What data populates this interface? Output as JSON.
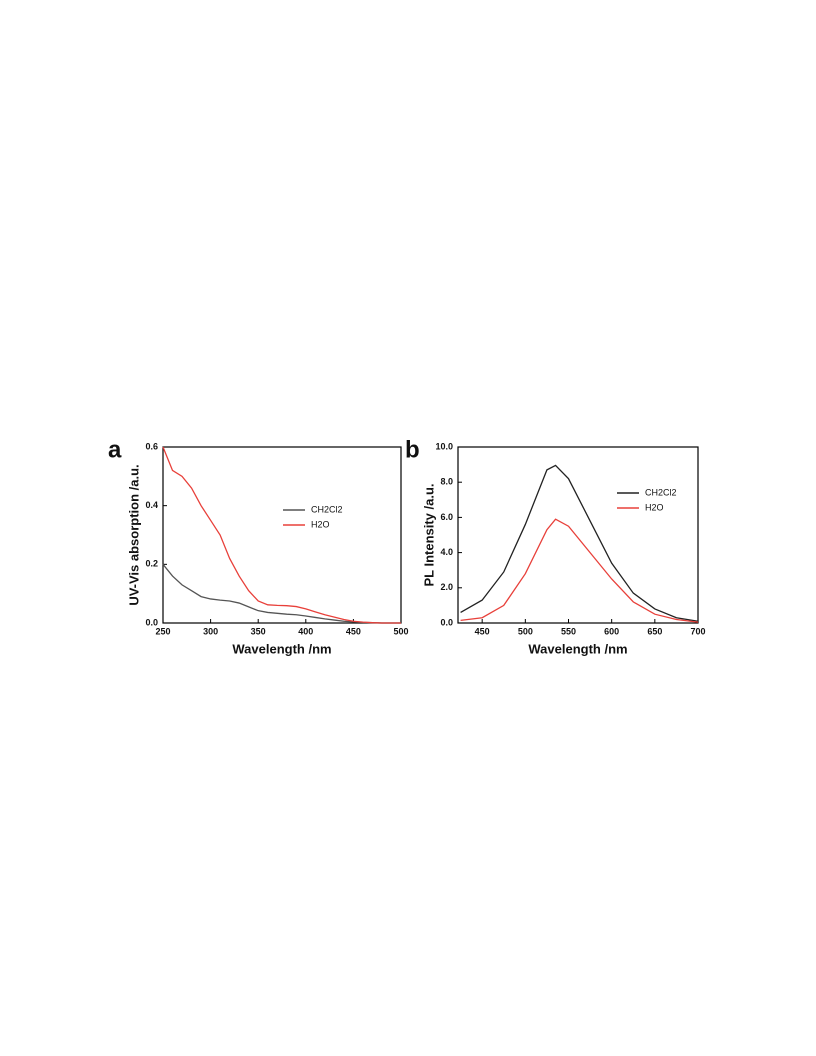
{
  "chart_data": [
    {
      "type": "line",
      "panel_label": "a",
      "x_label": "Wavelength /nm",
      "y_label": "UV-Vis absorption /a.u.",
      "x": [
        250,
        260,
        270,
        280,
        290,
        300,
        310,
        320,
        330,
        340,
        350,
        360,
        370,
        380,
        390,
        400,
        410,
        420,
        430,
        440,
        450,
        460,
        470,
        480,
        490,
        500
      ],
      "series": [
        {
          "name": "CH2Cl2",
          "color": "#555555",
          "values": [
            0.2,
            0.16,
            0.13,
            0.11,
            0.09,
            0.082,
            0.078,
            0.075,
            0.068,
            0.055,
            0.042,
            0.036,
            0.033,
            0.03,
            0.028,
            0.024,
            0.019,
            0.014,
            0.01,
            0.006,
            0.004,
            0.002,
            0.001,
            0,
            0,
            0
          ]
        },
        {
          "name": "H2O",
          "color": "#e8403a",
          "values": [
            0.6,
            0.52,
            0.5,
            0.46,
            0.4,
            0.35,
            0.3,
            0.22,
            0.16,
            0.11,
            0.075,
            0.062,
            0.06,
            0.059,
            0.056,
            0.048,
            0.038,
            0.028,
            0.02,
            0.012,
            0.006,
            0.003,
            0.001,
            0,
            0,
            0
          ]
        }
      ],
      "xlim": [
        250,
        500
      ],
      "xticks": [
        250,
        300,
        350,
        400,
        450,
        500
      ],
      "ylim": [
        0,
        0.6
      ],
      "yticks": [
        {
          "value": 0,
          "label": "0.0"
        },
        0.2,
        0.4,
        0.6
      ]
    },
    {
      "type": "line",
      "panel_label": "b",
      "x_label": "Wavelength /nm",
      "y_label": "PL Intensity /a.u.",
      "x": [
        425,
        450,
        475,
        500,
        525,
        535,
        550,
        575,
        600,
        625,
        650,
        675,
        700
      ],
      "series": [
        {
          "name": "CH2Cl2",
          "color": "#222222",
          "values": [
            0.6,
            1.3,
            2.9,
            5.6,
            8.7,
            8.95,
            8.2,
            5.8,
            3.4,
            1.7,
            0.8,
            0.3,
            0.1
          ]
        },
        {
          "name": "H2O",
          "color": "#e8403a",
          "values": [
            0.15,
            0.3,
            1.0,
            2.8,
            5.3,
            5.9,
            5.5,
            4.0,
            2.5,
            1.2,
            0.5,
            0.2,
            0.05
          ]
        }
      ],
      "xlim": [
        422,
        700
      ],
      "xticks": [
        450,
        500,
        550,
        600,
        650,
        700
      ],
      "ylim": [
        0,
        10
      ],
      "yticks": [
        {
          "value": 0,
          "label": "0.0"
        },
        {
          "value": 2,
          "label": "2.0"
        },
        {
          "value": 4,
          "label": "4.0"
        },
        {
          "value": 6,
          "label": "6.0"
        },
        {
          "value": 8,
          "label": "8.0"
        },
        {
          "value": 10,
          "label": "10.0"
        }
      ]
    }
  ]
}
